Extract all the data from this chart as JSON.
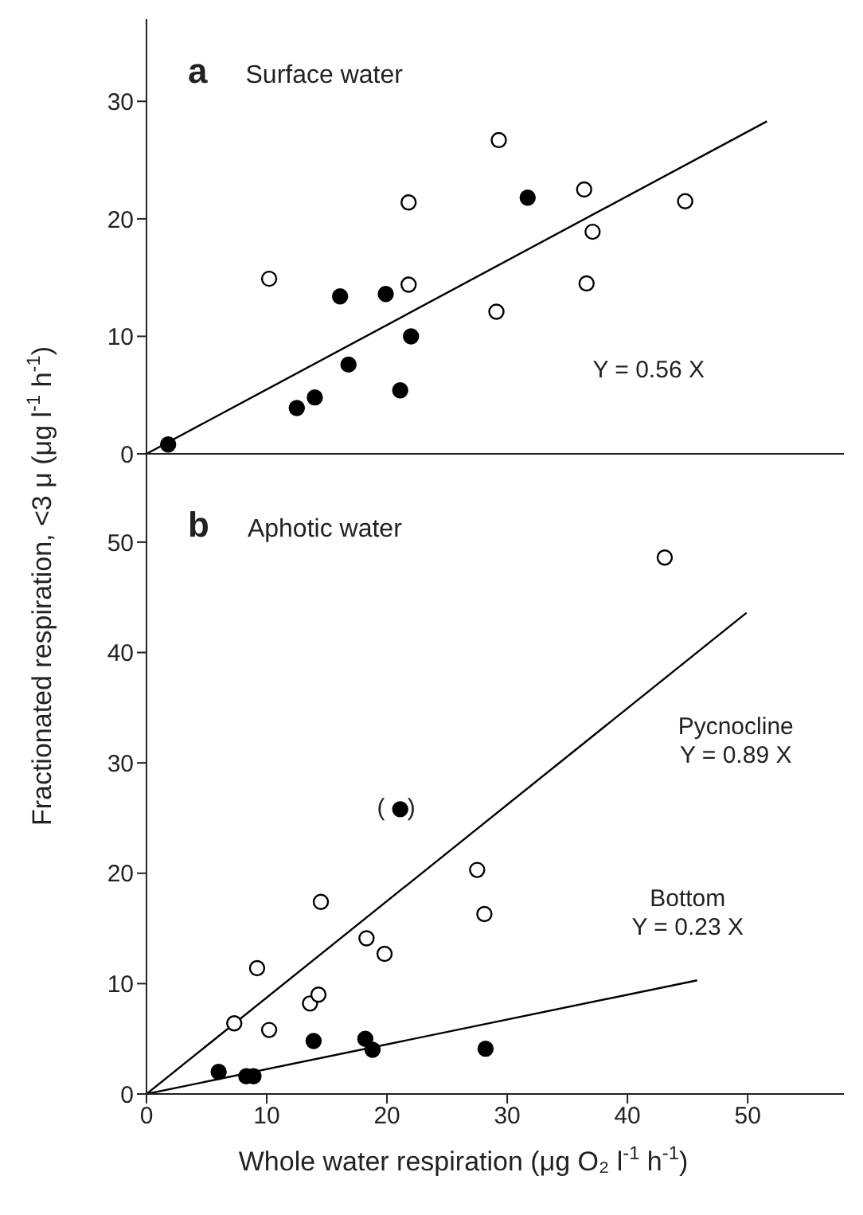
{
  "chart_data": [
    {
      "type": "scatter",
      "title": "a",
      "subtitle": "Surface water",
      "tick_labels": "y",
      "xlim": [
        0,
        58
      ],
      "xticks": [
        0,
        10,
        20,
        30,
        40,
        50
      ],
      "ylim": [
        0,
        37
      ],
      "yticks": [
        0,
        10,
        20,
        30
      ],
      "series": [
        {
          "color": "#ffffff",
          "marker": "circle",
          "x": [
            10.2,
            21.8,
            21.8,
            29.3,
            29.1,
            36.4,
            37.1,
            36.6,
            44.8
          ],
          "values": [
            14.9,
            21.4,
            14.4,
            26.7,
            12.1,
            22.5,
            18.9,
            14.5,
            21.5
          ]
        },
        {
          "color": "#000000",
          "marker": "circle",
          "x": [
            1.8,
            12.5,
            14.0,
            16.1,
            16.8,
            19.9,
            21.1,
            22.0,
            31.7
          ],
          "values": [
            0.8,
            3.9,
            4.8,
            13.4,
            7.6,
            13.6,
            5.4,
            10.0,
            21.8
          ]
        },
        {
          "type": "line",
          "color": "#000000",
          "marker": "none",
          "x": [
            0,
            51.6
          ],
          "values": [
            0,
            28.3
          ]
        }
      ],
      "annotations": [
        "Y = 0.56 X"
      ]
    },
    {
      "type": "scatter",
      "title": "b",
      "subtitle": "Aphotic water",
      "xlabel": "Whole water respiration (μg O₂ l$^{-1}$ h$^{-1}$)",
      "ylabel": "Fractionated respiration, <3 μ (μg l$^{-1}$ h$^{-1}$)",
      "xlim": [
        0,
        58
      ],
      "xticks": [
        0,
        10,
        20,
        30,
        40,
        50
      ],
      "ylim": [
        0,
        58
      ],
      "yticks": [
        0,
        10,
        20,
        30,
        40,
        50
      ],
      "series": [
        {
          "color": "#ffffff",
          "marker": "circle",
          "x": [
            7.3,
            9.2,
            10.2,
            13.6,
            14.3,
            14.5,
            18.3,
            19.8,
            27.5,
            28.1,
            43.1
          ],
          "values": [
            6.4,
            11.4,
            5.8,
            8.2,
            9.0,
            17.4,
            14.1,
            12.7,
            20.3,
            16.3,
            48.6
          ]
        },
        {
          "color": "#000000",
          "marker": "circle",
          "x": [
            6.0,
            8.3,
            8.9,
            13.9,
            18.2,
            18.8,
            28.2,
            21.1
          ],
          "values": [
            2.0,
            1.6,
            1.6,
            4.8,
            5.0,
            4.0,
            4.1,
            25.8
          ]
        },
        {
          "type": "line",
          "color": "#000000",
          "marker": "none",
          "x": [
            0,
            49.9
          ],
          "values": [
            0,
            43.6
          ]
        },
        {
          "type": "line",
          "color": "#000000",
          "marker": "none",
          "x": [
            0,
            45.8
          ],
          "values": [
            0,
            10.3
          ]
        }
      ],
      "annotations": [
        "Pycnocline\nY = 0.89 X",
        "Bottom\nY = 0.23 X",
        {
          "text": "( )",
          "x": 21.1,
          "y": 25.8
        }
      ]
    }
  ]
}
